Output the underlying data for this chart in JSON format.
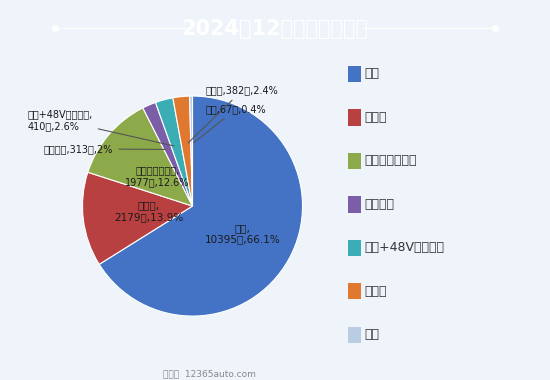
{
  "title": "2024年12月能源投诉占比",
  "labels": [
    "汽油",
    "纯电动",
    "插电式混合动力",
    "油电混合",
    "汽油+48V轻混系统",
    "增程式",
    "柴油"
  ],
  "values": [
    10395,
    2179,
    1977,
    313,
    410,
    382,
    67
  ],
  "inner_labels": [
    [
      "汽油,",
      "10395宗,66.1%"
    ],
    [
      "纯电动,",
      "2179宗,13.9%"
    ],
    [
      "插电式混合动力,",
      "1977宗,12.6%"
    ]
  ],
  "outer_labels": [
    {
      "text": "油电混合,313宗,2%",
      "idx": 3
    },
    {
      "text": "汽油+48V轻混系统,\n410宗,2.6%",
      "idx": 4
    },
    {
      "text": "增程式,382宗,2.4%",
      "idx": 5
    },
    {
      "text": "柴油,67宗,0.4%",
      "idx": 6
    }
  ],
  "colors": [
    "#4472C4",
    "#B94040",
    "#8DAA4A",
    "#7B5EA7",
    "#3BADB5",
    "#E07830",
    "#B8CCE4"
  ],
  "title_bg_color": "#1AA0E8",
  "title_text_color": "#FFFFFF",
  "background_color": "#EEF4FA",
  "legend_labels": [
    "汽油",
    "纯电动",
    "插电式混合动力",
    "油电混合",
    "汽油+48V轻混系统",
    "增程式",
    "柴油"
  ],
  "footer": "车质网  12365auto.com"
}
